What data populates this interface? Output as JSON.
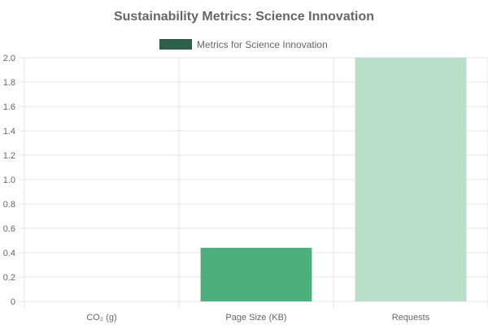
{
  "chart_data": {
    "type": "bar",
    "title": "Sustainability Metrics: Science Innovation",
    "categories": [
      "CO₂ (g)",
      "Page Size (KB)",
      "Requests"
    ],
    "series": [
      {
        "name": "Metrics for Science Innovation",
        "values": [
          0.0,
          0.44,
          2.0
        ],
        "colors": [
          "#2d5f4a",
          "#4caf7d",
          "#b8e0c8"
        ]
      }
    ],
    "legend_color": "#2d5f4a",
    "ylim": [
      0,
      2.0
    ],
    "yticks": [
      "0",
      "0.2",
      "0.4",
      "0.6",
      "0.8",
      "1.0",
      "1.2",
      "1.4",
      "1.6",
      "1.8",
      "2.0"
    ],
    "grid": true,
    "legend_position": "top"
  }
}
